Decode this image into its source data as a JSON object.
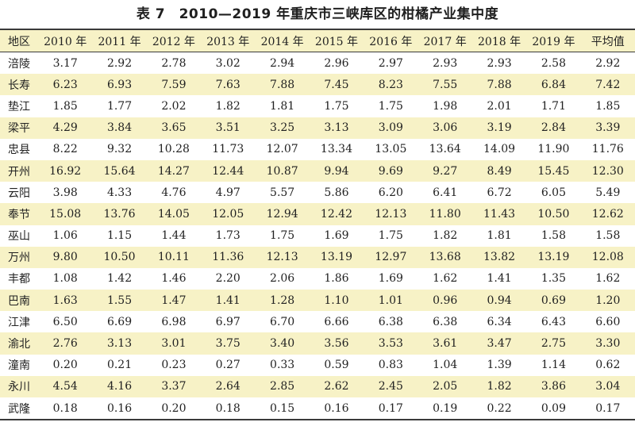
{
  "title": "表 7　2010—2019 年重庆市三峡库区的柑橘产业集中度",
  "headers": [
    "地区",
    "2010 年",
    "2011 年",
    "2012 年",
    "2013 年",
    "2014 年",
    "2015 年",
    "2016 年",
    "2017 年",
    "2018 年",
    "2019 年",
    "平均值"
  ],
  "rows": [
    [
      "涪陵",
      "3.17",
      "2.92",
      "2.78",
      "3.02",
      "2.94",
      "2.96",
      "2.97",
      "2.93",
      "2.93",
      "2.58",
      "2.92"
    ],
    [
      "长寿",
      "6.23",
      "6.93",
      "7.59",
      "7.63",
      "7.88",
      "7.45",
      "8.23",
      "7.55",
      "7.88",
      "6.84",
      "7.42"
    ],
    [
      "垫江",
      "1.85",
      "1.77",
      "2.02",
      "1.82",
      "1.81",
      "1.75",
      "1.75",
      "1.98",
      "2.01",
      "1.71",
      "1.85"
    ],
    [
      "梁平",
      "4.29",
      "3.84",
      "3.65",
      "3.51",
      "3.25",
      "3.13",
      "3.09",
      "3.06",
      "3.19",
      "2.84",
      "3.39"
    ],
    [
      "忠县",
      "8.22",
      "9.32",
      "10.28",
      "11.73",
      "12.07",
      "13.34",
      "13.05",
      "13.64",
      "14.09",
      "11.90",
      "11.76"
    ],
    [
      "开州",
      "16.92",
      "15.64",
      "14.27",
      "12.44",
      "10.87",
      "9.94",
      "9.69",
      "9.27",
      "8.49",
      "15.45",
      "12.30"
    ],
    [
      "云阳",
      "3.98",
      "4.33",
      "4.76",
      "4.97",
      "5.57",
      "5.86",
      "6.20",
      "6.41",
      "6.72",
      "6.05",
      "5.49"
    ],
    [
      "奉节",
      "15.08",
      "13.76",
      "14.05",
      "12.05",
      "12.94",
      "12.42",
      "12.13",
      "11.80",
      "11.43",
      "10.50",
      "12.62"
    ],
    [
      "巫山",
      "1.06",
      "1.15",
      "1.44",
      "1.73",
      "1.75",
      "1.69",
      "1.75",
      "1.82",
      "1.81",
      "1.58",
      "1.58"
    ],
    [
      "万州",
      "9.80",
      "10.50",
      "10.11",
      "11.36",
      "12.13",
      "13.19",
      "12.97",
      "13.68",
      "13.82",
      "13.19",
      "12.08"
    ],
    [
      "丰都",
      "1.08",
      "1.42",
      "1.46",
      "2.20",
      "2.06",
      "1.86",
      "1.69",
      "1.62",
      "1.41",
      "1.35",
      "1.62"
    ],
    [
      "巴南",
      "1.63",
      "1.55",
      "1.47",
      "1.41",
      "1.28",
      "1.10",
      "1.01",
      "0.96",
      "0.94",
      "0.69",
      "1.20"
    ],
    [
      "江津",
      "6.50",
      "6.69",
      "6.98",
      "6.97",
      "6.70",
      "6.66",
      "6.38",
      "6.38",
      "6.34",
      "6.43",
      "6.60"
    ],
    [
      "渝北",
      "2.76",
      "3.13",
      "3.01",
      "3.75",
      "3.40",
      "3.56",
      "3.53",
      "3.61",
      "3.47",
      "2.75",
      "3.30"
    ],
    [
      "潼南",
      "0.20",
      "0.21",
      "0.23",
      "0.27",
      "0.33",
      "0.59",
      "0.83",
      "1.04",
      "1.39",
      "1.14",
      "0.62"
    ],
    [
      "永川",
      "4.54",
      "4.16",
      "3.37",
      "2.64",
      "2.85",
      "2.62",
      "2.45",
      "2.05",
      "1.82",
      "3.86",
      "3.04"
    ],
    [
      "武隆",
      "0.18",
      "0.16",
      "0.20",
      "0.18",
      "0.15",
      "0.16",
      "0.17",
      "0.19",
      "0.22",
      "0.09",
      "0.17"
    ]
  ]
}
